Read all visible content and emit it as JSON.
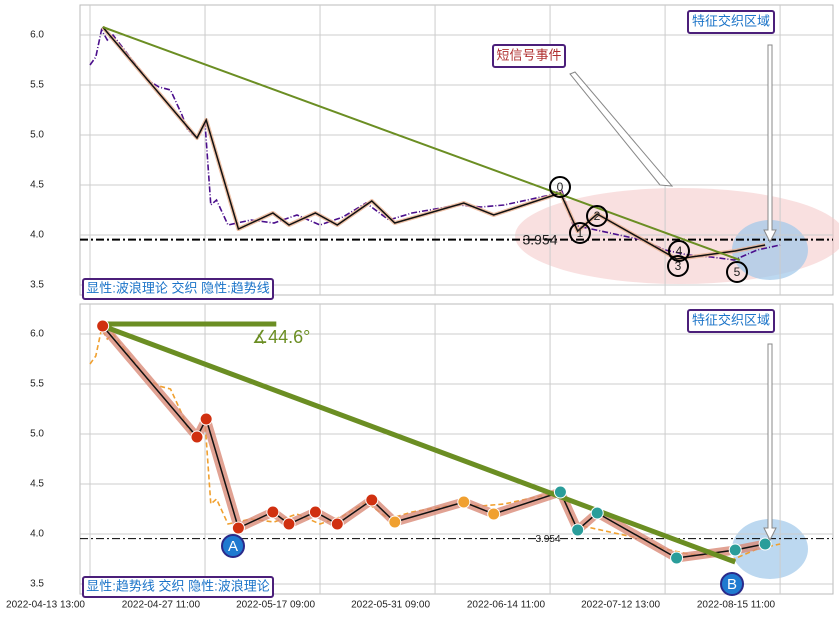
{
  "chart_data": [
    {
      "type": "line",
      "level": 3.954,
      "annotations": [
        "特征交织区域",
        "短信号事件",
        "显性:波浪理论 交织 隐性:趋势线"
      ],
      "wave_labels": [
        "0",
        "1",
        "2",
        "3",
        "4",
        "5"
      ],
      "xlim": [
        -0.87,
        64.6
      ],
      "ylim": [
        3.4,
        6.3
      ],
      "yticks": [
        3.5,
        {
          "value": 4,
          "label": "4.0"
        },
        4.5,
        {
          "value": 5,
          "label": "5.0"
        },
        5.5,
        {
          "value": 6,
          "label": "6.0"
        }
      ],
      "series": [
        {
          "name": "price",
          "color": "#4b0f8c",
          "x": [
            0,
            0.5,
            1,
            1.5,
            2,
            3,
            4,
            5,
            6,
            7,
            8,
            8.5,
            9.3,
            10,
            10.5,
            11,
            12,
            14,
            16,
            18,
            20,
            22,
            24,
            26,
            28,
            30,
            32,
            34,
            36,
            38,
            40,
            41,
            42,
            44,
            46,
            48,
            50,
            52,
            54,
            56,
            58,
            60
          ],
          "values": [
            5.7,
            5.78,
            6.05,
            5.95,
            6,
            5.85,
            5.7,
            5.55,
            5.48,
            5.45,
            5.2,
            5.05,
            4.97,
            5.12,
            4.3,
            4.35,
            4.1,
            4.15,
            4.12,
            4.2,
            4.1,
            4.18,
            4.32,
            4.15,
            4.22,
            4.26,
            4.3,
            4.28,
            4.3,
            4.35,
            4.4,
            4.45,
            4.1,
            4.05,
            4,
            3.95,
            3.85,
            3.8,
            3.78,
            3.75,
            3.85,
            3.9
          ]
        },
        {
          "name": "wave",
          "color": "#111111",
          "x": [
            1.1,
            9.3,
            10.1,
            12.9,
            15.9,
            17.3,
            19.6,
            21.5,
            24.5,
            26.5,
            32.5,
            35.1,
            40.9,
            42.4,
            44.1,
            51,
            56.1,
            58.7
          ],
          "values": [
            6.08,
            4.97,
            5.15,
            4.06,
            4.22,
            4.1,
            4.22,
            4.1,
            4.34,
            4.12,
            4.32,
            4.2,
            4.42,
            4.04,
            4.21,
            3.76,
            3.84,
            3.9
          ]
        },
        {
          "name": "trend",
          "color": "#6b8e23",
          "x": [
            1.1,
            56.5
          ],
          "values": [
            6.08,
            3.75
          ]
        }
      ]
    },
    {
      "type": "line",
      "level": 3.954,
      "annotations": [
        "特征交织区域",
        "显性:趋势线 交织 隐性:波浪理论",
        "∡44.6°"
      ],
      "wave_labels": [
        "A",
        "B"
      ],
      "xlim": [
        -0.87,
        64.6
      ],
      "ylim": [
        3.4,
        6.3
      ],
      "yticks": [
        3.5,
        {
          "value": 4,
          "label": "4.0"
        },
        4.5,
        {
          "value": 5,
          "label": "5.0"
        },
        5.5,
        {
          "value": 6,
          "label": "6.0"
        }
      ],
      "xticks": [
        {
          "value": 0,
          "label": "2022-04-13 13:00"
        },
        {
          "value": 10,
          "label": "2022-04-27 11:00"
        },
        {
          "value": 20,
          "label": "2022-05-17 09:00"
        },
        {
          "value": 30,
          "label": "2022-05-31 09:00"
        },
        {
          "value": 40,
          "label": "2022-06-14 11:00"
        },
        {
          "value": 50,
          "label": "2022-07-12 13:00"
        },
        {
          "value": 60,
          "label": "2022-08-15 11:00"
        }
      ],
      "series": [
        {
          "name": "price",
          "color": "#f0a030",
          "x": [
            0,
            0.5,
            1,
            1.5,
            2,
            3,
            4,
            5,
            6,
            7,
            8,
            8.5,
            9.3,
            10,
            10.5,
            11,
            12,
            14,
            16,
            18,
            20,
            22,
            24,
            26,
            28,
            30,
            32,
            34,
            36,
            38,
            40,
            41,
            42,
            44,
            46,
            48,
            50,
            52,
            54,
            56,
            58,
            60
          ],
          "values": [
            5.7,
            5.78,
            6.05,
            5.95,
            6,
            5.85,
            5.7,
            5.55,
            5.48,
            5.45,
            5.2,
            5.05,
            4.97,
            5.12,
            4.3,
            4.35,
            4.1,
            4.15,
            4.12,
            4.2,
            4.1,
            4.18,
            4.32,
            4.15,
            4.22,
            4.26,
            4.3,
            4.28,
            4.3,
            4.35,
            4.4,
            4.45,
            4.1,
            4.05,
            4,
            3.95,
            3.85,
            3.8,
            3.78,
            3.75,
            3.85,
            3.9
          ]
        },
        {
          "name": "wave",
          "color": "#111111",
          "x": [
            1.1,
            9.3,
            10.1,
            12.9,
            15.9,
            17.3,
            19.6,
            21.5,
            24.5,
            26.5,
            32.5,
            35.1,
            40.9,
            42.4,
            44.1,
            51,
            56.1,
            58.7
          ],
          "values": [
            6.08,
            4.97,
            5.15,
            4.06,
            4.22,
            4.1,
            4.22,
            4.1,
            4.34,
            4.12,
            4.32,
            4.2,
            4.42,
            4.04,
            4.21,
            3.76,
            3.84,
            3.9
          ]
        },
        {
          "name": "trend",
          "color": "#6b8e23",
          "x": [
            1.1,
            56.1
          ],
          "values": [
            6.08,
            3.72
          ]
        },
        {
          "name": "angle",
          "color": "#6b8e23",
          "x": [
            1.1,
            16.2
          ],
          "values": [
            6.1,
            6.1
          ]
        }
      ]
    }
  ]
}
